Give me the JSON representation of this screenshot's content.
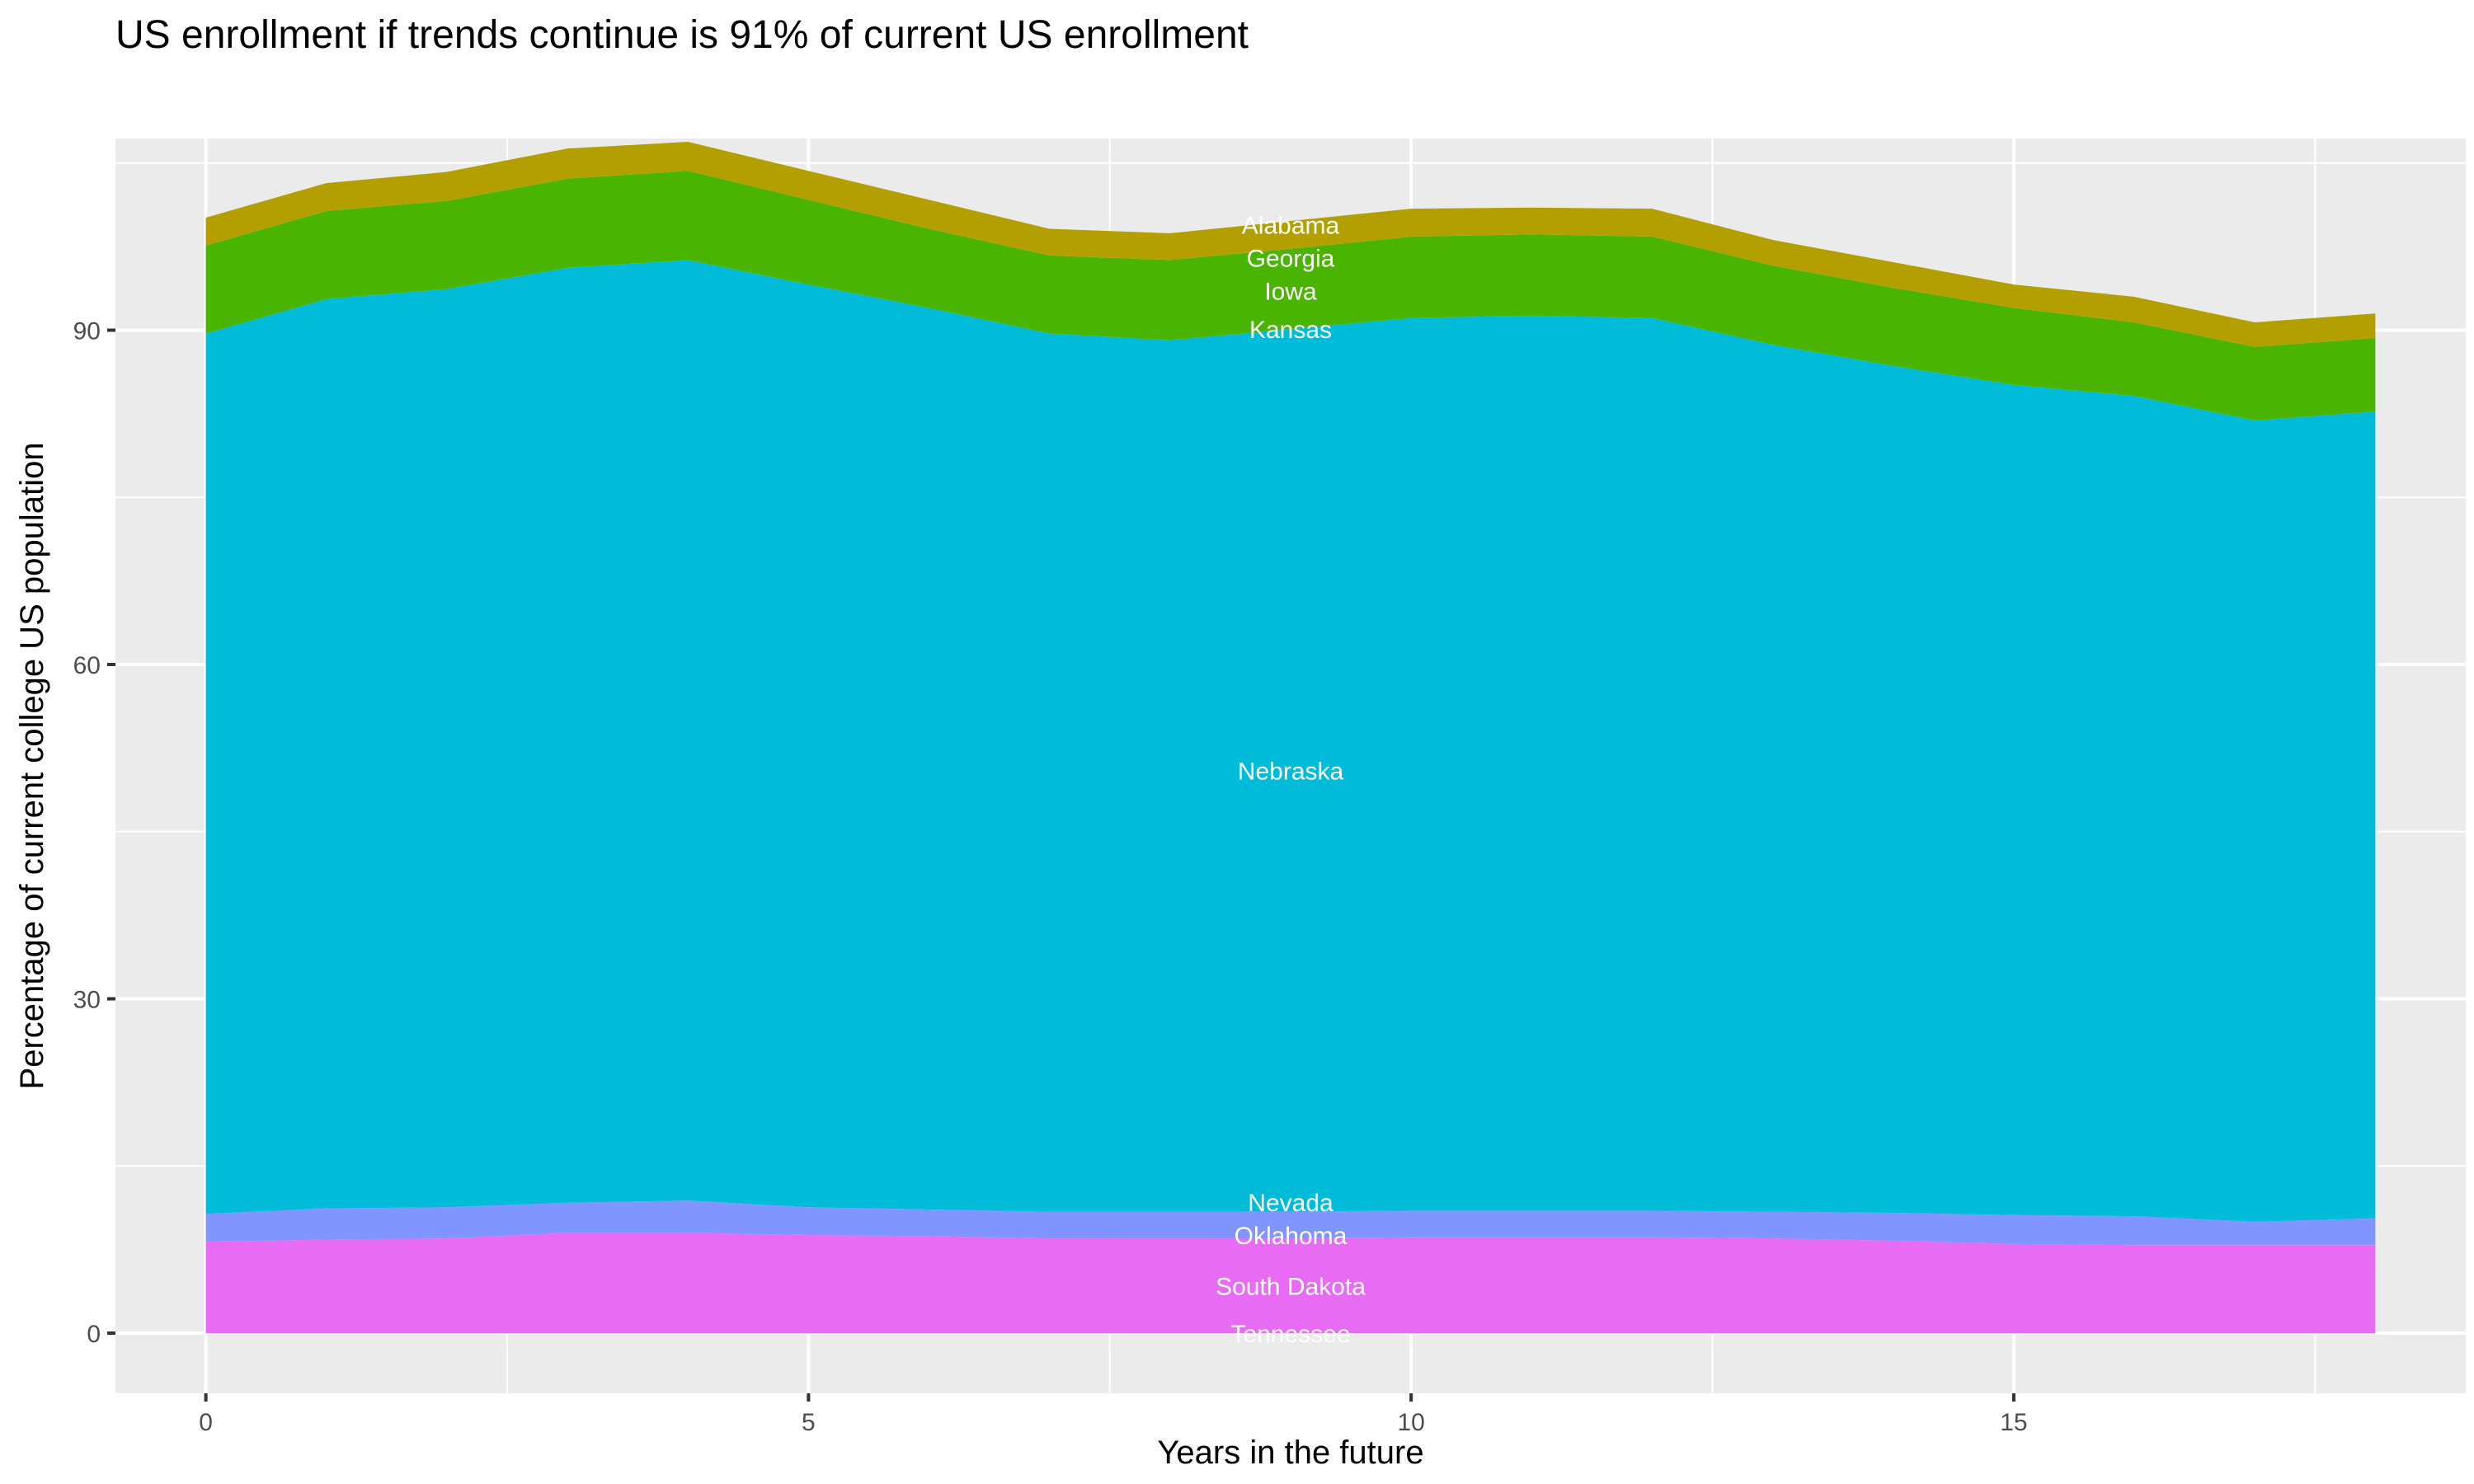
{
  "chart_data": {
    "type": "area",
    "stacked": true,
    "title": "US enrollment if trends continue is 91% of current US enrollment",
    "xlabel": "Years in the future",
    "ylabel": "Percentage of current college US population",
    "xlim": [
      -0.75,
      18.75
    ],
    "ylim": [
      -5.4,
      107.2
    ],
    "x_ticks": [
      0,
      5,
      10,
      15
    ],
    "y_ticks": [
      0,
      30,
      60,
      90
    ],
    "grid": true,
    "legend": "none (inline labels)",
    "label_x": 9,
    "x": [
      0,
      1,
      2,
      3,
      4,
      5,
      6,
      7,
      8,
      9,
      10,
      11,
      12,
      13,
      14,
      15,
      16,
      17,
      18
    ],
    "series": [
      {
        "name": "Tennessee",
        "color": "#F8766D",
        "values": [
          0,
          0,
          0,
          0,
          0,
          0,
          0,
          0,
          0,
          0,
          0,
          0,
          0,
          0,
          0,
          0,
          0,
          0,
          0
        ]
      },
      {
        "name": "South Dakota",
        "color": "#E76BF3",
        "values": [
          8.2,
          8.4,
          8.5,
          9.0,
          9.0,
          8.8,
          8.7,
          8.5,
          8.5,
          8.5,
          8.6,
          8.6,
          8.6,
          8.5,
          8.3,
          8.0,
          7.9,
          7.9,
          7.9
        ]
      },
      {
        "name": "Oklahoma",
        "color": "#8095FF",
        "values": [
          2.5,
          2.8,
          2.8,
          2.7,
          2.9,
          2.5,
          2.4,
          2.4,
          2.4,
          2.4,
          2.4,
          2.4,
          2.4,
          2.4,
          2.5,
          2.6,
          2.6,
          2.1,
          2.4
        ]
      },
      {
        "name": "Nevada",
        "color": "#8095FF",
        "values": [
          0,
          0,
          0,
          0,
          0,
          0,
          0,
          0,
          0,
          0,
          0,
          0,
          0,
          0,
          0,
          0,
          0,
          0,
          0
        ]
      },
      {
        "name": "Nebraska",
        "color": "#00BCD8",
        "values": [
          79.0,
          81.6,
          82.4,
          83.9,
          84.4,
          82.8,
          80.9,
          78.8,
          78.2,
          79.2,
          80.1,
          80.3,
          80.1,
          77.8,
          76.0,
          74.5,
          73.6,
          71.9,
          72.4
        ]
      },
      {
        "name": "Kansas",
        "color": "#00BCD8",
        "values": [
          0,
          0,
          0,
          0,
          0,
          0,
          0,
          0,
          0,
          0,
          0,
          0,
          0,
          0,
          0,
          0,
          0,
          0,
          0
        ]
      },
      {
        "name": "Iowa",
        "color": "#4AB500",
        "values": [
          7.9,
          7.9,
          7.9,
          8.0,
          8.0,
          7.6,
          7.1,
          7.0,
          7.2,
          7.2,
          7.3,
          7.3,
          7.3,
          7.1,
          7.0,
          6.9,
          6.6,
          6.6,
          6.6
        ]
      },
      {
        "name": "Georgia",
        "color": "#4AB500",
        "values": [
          0,
          0,
          0,
          0,
          0,
          0,
          0,
          0,
          0,
          0,
          0,
          0,
          0,
          0,
          0,
          0,
          0,
          0,
          0
        ]
      },
      {
        "name": "Alabama",
        "color": "#B3A000",
        "values": [
          2.5,
          2.5,
          2.6,
          2.7,
          2.6,
          2.6,
          2.6,
          2.4,
          2.4,
          2.5,
          2.5,
          2.4,
          2.5,
          2.3,
          2.3,
          2.1,
          2.3,
          2.2,
          2.2
        ]
      }
    ],
    "colors": {
      "panel": "#EBEBEB",
      "grid": "#FFFFFF",
      "label_text": "#FFFFFF"
    }
  }
}
